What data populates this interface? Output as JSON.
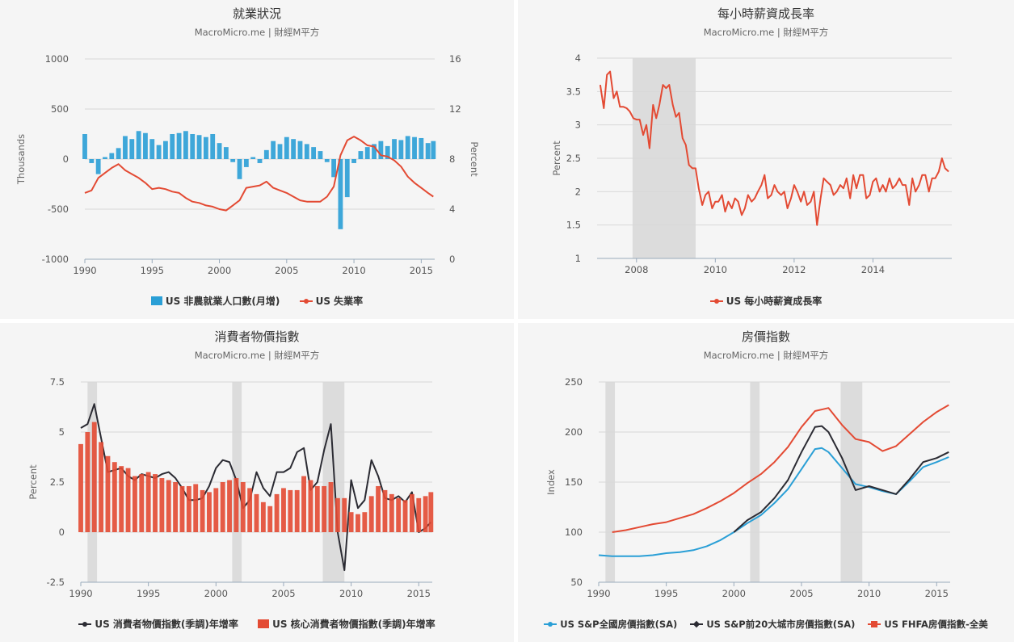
{
  "panels": [
    {
      "title": "就業狀況",
      "subtitle": "MacroMicro.me | 財經M平方"
    },
    {
      "title": "每小時薪資成長率",
      "subtitle": "MacroMicro.me | 財經M平方"
    },
    {
      "title": "消費者物價指數",
      "subtitle": "MacroMicro.me | 財經M平方"
    },
    {
      "title": "房價指數",
      "subtitle": "MacroMicro.me | 財經M平方"
    }
  ],
  "colors": {
    "blue": "#2a9fd6",
    "red": "#e34a33",
    "dark": "#2b2b33",
    "recession": "#dcdcdc",
    "axis": "#888888"
  },
  "chart_data": [
    {
      "type": "bar",
      "title": "就業狀況",
      "subtitle": "MacroMicro.me | 財經M平方",
      "ylabel": "Thousands",
      "y2label": "Percent",
      "xlim": [
        1990,
        2016
      ],
      "ylim": [
        -1000,
        1000
      ],
      "y2lim": [
        0,
        16
      ],
      "xticks": [
        1990,
        1995,
        2000,
        2005,
        2010,
        2015
      ],
      "yticks": [
        -1000,
        -500,
        0,
        500,
        1000
      ],
      "y2ticks": [
        0,
        4,
        8,
        12,
        16
      ],
      "legend_position": "bottom",
      "series": [
        {
          "name": "US 非農就業人口數(月增)",
          "type": "bar",
          "color": "#2a9fd6",
          "x": [
            1990.0,
            1990.5,
            1991.0,
            1991.5,
            1992.0,
            1992.5,
            1993.0,
            1993.5,
            1994.0,
            1994.5,
            1995.0,
            1995.5,
            1996.0,
            1996.5,
            1997.0,
            1997.5,
            1998.0,
            1998.5,
            1999.0,
            1999.5,
            2000.0,
            2000.5,
            2001.0,
            2001.5,
            2002.0,
            2002.5,
            2003.0,
            2003.5,
            2004.0,
            2004.5,
            2005.0,
            2005.5,
            2006.0,
            2006.5,
            2007.0,
            2007.5,
            2008.0,
            2008.5,
            2009.0,
            2009.5,
            2010.0,
            2010.5,
            2011.0,
            2011.5,
            2012.0,
            2012.5,
            2013.0,
            2013.5,
            2014.0,
            2014.5,
            2015.0,
            2015.5,
            2015.9
          ],
          "values": [
            250,
            -40,
            -150,
            20,
            60,
            110,
            230,
            200,
            280,
            260,
            200,
            140,
            180,
            250,
            260,
            280,
            250,
            240,
            220,
            250,
            160,
            120,
            -30,
            -200,
            -80,
            20,
            -40,
            90,
            180,
            150,
            220,
            200,
            180,
            150,
            120,
            80,
            -30,
            -180,
            -700,
            -380,
            -40,
            80,
            120,
            150,
            180,
            130,
            200,
            190,
            230,
            220,
            210,
            160,
            180
          ]
        },
        {
          "name": "US 失業率",
          "type": "line",
          "axis": "right",
          "color": "#e34a33",
          "x": [
            1990.0,
            1990.5,
            1991.0,
            1991.5,
            1992.0,
            1992.5,
            1993.0,
            1993.5,
            1994.0,
            1994.5,
            1995.0,
            1995.5,
            1996.0,
            1996.5,
            1997.0,
            1997.5,
            1998.0,
            1998.5,
            1999.0,
            1999.5,
            2000.0,
            2000.5,
            2001.0,
            2001.5,
            2002.0,
            2002.5,
            2003.0,
            2003.5,
            2004.0,
            2004.5,
            2005.0,
            2005.5,
            2006.0,
            2006.5,
            2007.0,
            2007.5,
            2008.0,
            2008.5,
            2009.0,
            2009.5,
            2010.0,
            2010.5,
            2011.0,
            2011.5,
            2012.0,
            2012.5,
            2013.0,
            2013.5,
            2014.0,
            2014.5,
            2015.0,
            2015.5,
            2015.9
          ],
          "values": [
            5.3,
            5.5,
            6.5,
            6.9,
            7.3,
            7.6,
            7.1,
            6.8,
            6.5,
            6.1,
            5.6,
            5.7,
            5.6,
            5.4,
            5.3,
            4.9,
            4.6,
            4.5,
            4.3,
            4.2,
            4.0,
            3.9,
            4.3,
            4.7,
            5.7,
            5.8,
            5.9,
            6.2,
            5.7,
            5.5,
            5.3,
            5.0,
            4.7,
            4.6,
            4.6,
            4.6,
            5.0,
            5.8,
            8.3,
            9.5,
            9.8,
            9.5,
            9.1,
            9.0,
            8.3,
            8.2,
            7.9,
            7.4,
            6.6,
            6.1,
            5.7,
            5.3,
            5.0
          ]
        }
      ]
    },
    {
      "type": "line",
      "title": "每小時薪資成長率",
      "subtitle": "MacroMicro.me | 財經M平方",
      "ylabel": "Percent",
      "xlim": [
        2007,
        2016
      ],
      "ylim": [
        1,
        4
      ],
      "xticks": [
        2008,
        2010,
        2012,
        2014
      ],
      "yticks": [
        1,
        1.5,
        2,
        2.5,
        3,
        3.5,
        4
      ],
      "recessions": [
        [
          2007.9,
          2009.5
        ]
      ],
      "legend_position": "bottom",
      "series": [
        {
          "name": "US 每小時薪資成長率",
          "color": "#e34a33",
          "x": [
            2007.08,
            2007.17,
            2007.25,
            2007.33,
            2007.42,
            2007.5,
            2007.58,
            2007.67,
            2007.75,
            2007.83,
            2007.92,
            2008.0,
            2008.08,
            2008.17,
            2008.25,
            2008.33,
            2008.42,
            2008.5,
            2008.58,
            2008.67,
            2008.75,
            2008.83,
            2008.92,
            2009.0,
            2009.08,
            2009.17,
            2009.25,
            2009.33,
            2009.42,
            2009.5,
            2009.58,
            2009.67,
            2009.75,
            2009.83,
            2009.92,
            2010.0,
            2010.08,
            2010.17,
            2010.25,
            2010.33,
            2010.42,
            2010.5,
            2010.58,
            2010.67,
            2010.75,
            2010.83,
            2010.92,
            2011.0,
            2011.08,
            2011.17,
            2011.25,
            2011.33,
            2011.42,
            2011.5,
            2011.58,
            2011.67,
            2011.75,
            2011.83,
            2011.92,
            2012.0,
            2012.08,
            2012.17,
            2012.25,
            2012.33,
            2012.42,
            2012.5,
            2012.58,
            2012.67,
            2012.75,
            2012.83,
            2012.92,
            2013.0,
            2013.08,
            2013.17,
            2013.25,
            2013.33,
            2013.42,
            2013.5,
            2013.58,
            2013.67,
            2013.75,
            2013.83,
            2013.92,
            2014.0,
            2014.08,
            2014.17,
            2014.25,
            2014.33,
            2014.42,
            2014.5,
            2014.58,
            2014.67,
            2014.75,
            2014.83,
            2014.92,
            2015.0,
            2015.08,
            2015.17,
            2015.25,
            2015.33,
            2015.42,
            2015.5,
            2015.58,
            2015.67,
            2015.75,
            2015.83,
            2015.92
          ],
          "values": [
            3.6,
            3.25,
            3.75,
            3.8,
            3.4,
            3.5,
            3.27,
            3.27,
            3.25,
            3.2,
            3.1,
            3.08,
            3.08,
            2.85,
            3.0,
            2.65,
            3.3,
            3.1,
            3.3,
            3.6,
            3.55,
            3.6,
            3.3,
            3.12,
            3.18,
            2.8,
            2.7,
            2.4,
            2.35,
            2.35,
            2.05,
            1.8,
            1.95,
            2.0,
            1.75,
            1.85,
            1.85,
            1.95,
            1.7,
            1.85,
            1.75,
            1.9,
            1.85,
            1.65,
            1.75,
            1.95,
            1.85,
            1.9,
            2.0,
            2.1,
            2.25,
            1.9,
            1.95,
            2.1,
            2.0,
            1.95,
            2.0,
            1.75,
            1.9,
            2.1,
            2.0,
            1.85,
            2.0,
            1.8,
            1.85,
            2.0,
            1.5,
            1.9,
            2.2,
            2.15,
            2.1,
            1.95,
            2.0,
            2.1,
            2.05,
            2.2,
            1.9,
            2.25,
            2.05,
            2.25,
            2.25,
            1.9,
            1.95,
            2.15,
            2.2,
            2.0,
            2.1,
            2.0,
            2.2,
            2.05,
            2.1,
            2.2,
            2.1,
            2.1,
            1.8,
            2.2,
            2.0,
            2.1,
            2.25,
            2.25,
            2.0,
            2.2,
            2.2,
            2.3,
            2.5,
            2.35,
            2.3
          ]
        }
      ]
    },
    {
      "type": "bar",
      "title": "消費者物價指數",
      "subtitle": "MacroMicro.me | 財經M平方",
      "ylabel": "Percent",
      "xlim": [
        1990,
        2016
      ],
      "ylim": [
        -2.5,
        7.5
      ],
      "xticks": [
        1990,
        1995,
        2000,
        2005,
        2010,
        2015
      ],
      "yticks": [
        -2.5,
        0,
        2.5,
        5,
        7.5
      ],
      "recessions": [
        [
          1990.5,
          1991.2
        ],
        [
          2001.2,
          2001.9
        ],
        [
          2007.9,
          2009.5
        ]
      ],
      "legend_position": "bottom",
      "series": [
        {
          "name": "US 消費者物價指數(季調)年增率",
          "type": "line",
          "color": "#2b2b33",
          "x": [
            1990.0,
            1990.5,
            1991.0,
            1991.5,
            1992.0,
            1992.5,
            1993.0,
            1993.5,
            1994.0,
            1994.5,
            1995.0,
            1995.5,
            1996.0,
            1996.5,
            1997.0,
            1997.5,
            1998.0,
            1998.5,
            1999.0,
            1999.5,
            2000.0,
            2000.5,
            2001.0,
            2001.5,
            2002.0,
            2002.5,
            2003.0,
            2003.5,
            2004.0,
            2004.5,
            2005.0,
            2005.5,
            2006.0,
            2006.5,
            2007.0,
            2007.5,
            2008.0,
            2008.5,
            2009.0,
            2009.5,
            2010.0,
            2010.5,
            2011.0,
            2011.5,
            2012.0,
            2012.5,
            2013.0,
            2013.5,
            2014.0,
            2014.5,
            2015.0,
            2015.5,
            2015.9
          ],
          "values": [
            5.2,
            5.4,
            6.4,
            4.7,
            3.0,
            3.1,
            3.2,
            2.8,
            2.6,
            2.9,
            2.8,
            2.7,
            2.9,
            3.0,
            2.7,
            2.2,
            1.6,
            1.6,
            1.7,
            2.3,
            3.2,
            3.6,
            3.5,
            2.6,
            1.2,
            1.6,
            3.0,
            2.2,
            1.8,
            3.0,
            3.0,
            3.2,
            4.0,
            4.2,
            2.1,
            2.5,
            4.1,
            5.4,
            0.0,
            -1.9,
            2.6,
            1.2,
            1.6,
            3.6,
            2.8,
            1.7,
            1.6,
            1.8,
            1.5,
            2.0,
            0.0,
            0.2,
            0.5
          ]
        },
        {
          "name": "US 核心消費者物價指數(季調)年增率",
          "type": "bar",
          "color": "#e34a33",
          "x": [
            1990.0,
            1990.5,
            1991.0,
            1991.5,
            1992.0,
            1992.5,
            1993.0,
            1993.5,
            1994.0,
            1994.5,
            1995.0,
            1995.5,
            1996.0,
            1996.5,
            1997.0,
            1997.5,
            1998.0,
            1998.5,
            1999.0,
            1999.5,
            2000.0,
            2000.5,
            2001.0,
            2001.5,
            2002.0,
            2002.5,
            2003.0,
            2003.5,
            2004.0,
            2004.5,
            2005.0,
            2005.5,
            2006.0,
            2006.5,
            2007.0,
            2007.5,
            2008.0,
            2008.5,
            2009.0,
            2009.5,
            2010.0,
            2010.5,
            2011.0,
            2011.5,
            2012.0,
            2012.5,
            2013.0,
            2013.5,
            2014.0,
            2014.5,
            2015.0,
            2015.5,
            2015.9
          ],
          "values": [
            4.4,
            5.0,
            5.5,
            4.5,
            3.8,
            3.5,
            3.3,
            3.2,
            2.8,
            2.9,
            3.0,
            2.9,
            2.7,
            2.6,
            2.5,
            2.3,
            2.3,
            2.4,
            2.1,
            2.0,
            2.2,
            2.5,
            2.6,
            2.7,
            2.5,
            2.2,
            1.9,
            1.5,
            1.3,
            1.9,
            2.2,
            2.1,
            2.1,
            2.8,
            2.6,
            2.3,
            2.3,
            2.5,
            1.7,
            1.7,
            1.0,
            0.9,
            1.0,
            1.8,
            2.3,
            2.1,
            1.9,
            1.7,
            1.6,
            1.9,
            1.7,
            1.8,
            2.0
          ]
        }
      ]
    },
    {
      "type": "line",
      "title": "房價指數",
      "subtitle": "MacroMicro.me | 財經M平方",
      "ylabel": "Index",
      "xlim": [
        1990,
        2016
      ],
      "ylim": [
        50,
        250
      ],
      "xticks": [
        1990,
        1995,
        2000,
        2005,
        2010,
        2015
      ],
      "yticks": [
        50,
        100,
        150,
        200,
        250
      ],
      "recessions": [
        [
          1990.5,
          1991.2
        ],
        [
          2001.2,
          2001.9
        ],
        [
          2007.9,
          2009.5
        ]
      ],
      "legend_position": "bottom",
      "series": [
        {
          "name": "US S&P全國房價指數(SA)",
          "color": "#2a9fd6",
          "x": [
            1990,
            1991,
            1992,
            1993,
            1994,
            1995,
            1996,
            1997,
            1998,
            1999,
            2000,
            2001,
            2002,
            2003,
            2004,
            2005,
            2006,
            2006.5,
            2007,
            2008,
            2009,
            2010,
            2011,
            2012,
            2013,
            2014,
            2015,
            2015.9
          ],
          "values": [
            77,
            76,
            76,
            76,
            77,
            79,
            80,
            82,
            86,
            92,
            100,
            109,
            117,
            129,
            143,
            163,
            183,
            184,
            180,
            164,
            148,
            145,
            141,
            138,
            151,
            165,
            170,
            175
          ]
        },
        {
          "name": "US S&P前20大城市房價指數(SA)",
          "color": "#2b2b33",
          "x": [
            2000,
            2001,
            2002,
            2003,
            2004,
            2005,
            2006,
            2006.5,
            2007,
            2008,
            2009,
            2010,
            2011,
            2012,
            2013,
            2014,
            2015,
            2015.9
          ],
          "values": [
            100,
            112,
            120,
            134,
            152,
            180,
            205,
            206,
            200,
            174,
            142,
            146,
            142,
            138,
            153,
            170,
            174,
            180
          ]
        },
        {
          "name": "US FHFA房價指數-全美",
          "color": "#e34a33",
          "x": [
            1991,
            1992,
            1993,
            1994,
            1995,
            1996,
            1997,
            1998,
            1999,
            2000,
            2001,
            2002,
            2003,
            2004,
            2005,
            2006,
            2007,
            2008,
            2009,
            2010,
            2011,
            2012,
            2013,
            2014,
            2015,
            2015.9
          ],
          "values": [
            100,
            102,
            105,
            108,
            110,
            114,
            118,
            124,
            131,
            139,
            149,
            158,
            170,
            185,
            205,
            221,
            224,
            207,
            193,
            190,
            181,
            186,
            198,
            210,
            220,
            227
          ]
        }
      ]
    }
  ]
}
